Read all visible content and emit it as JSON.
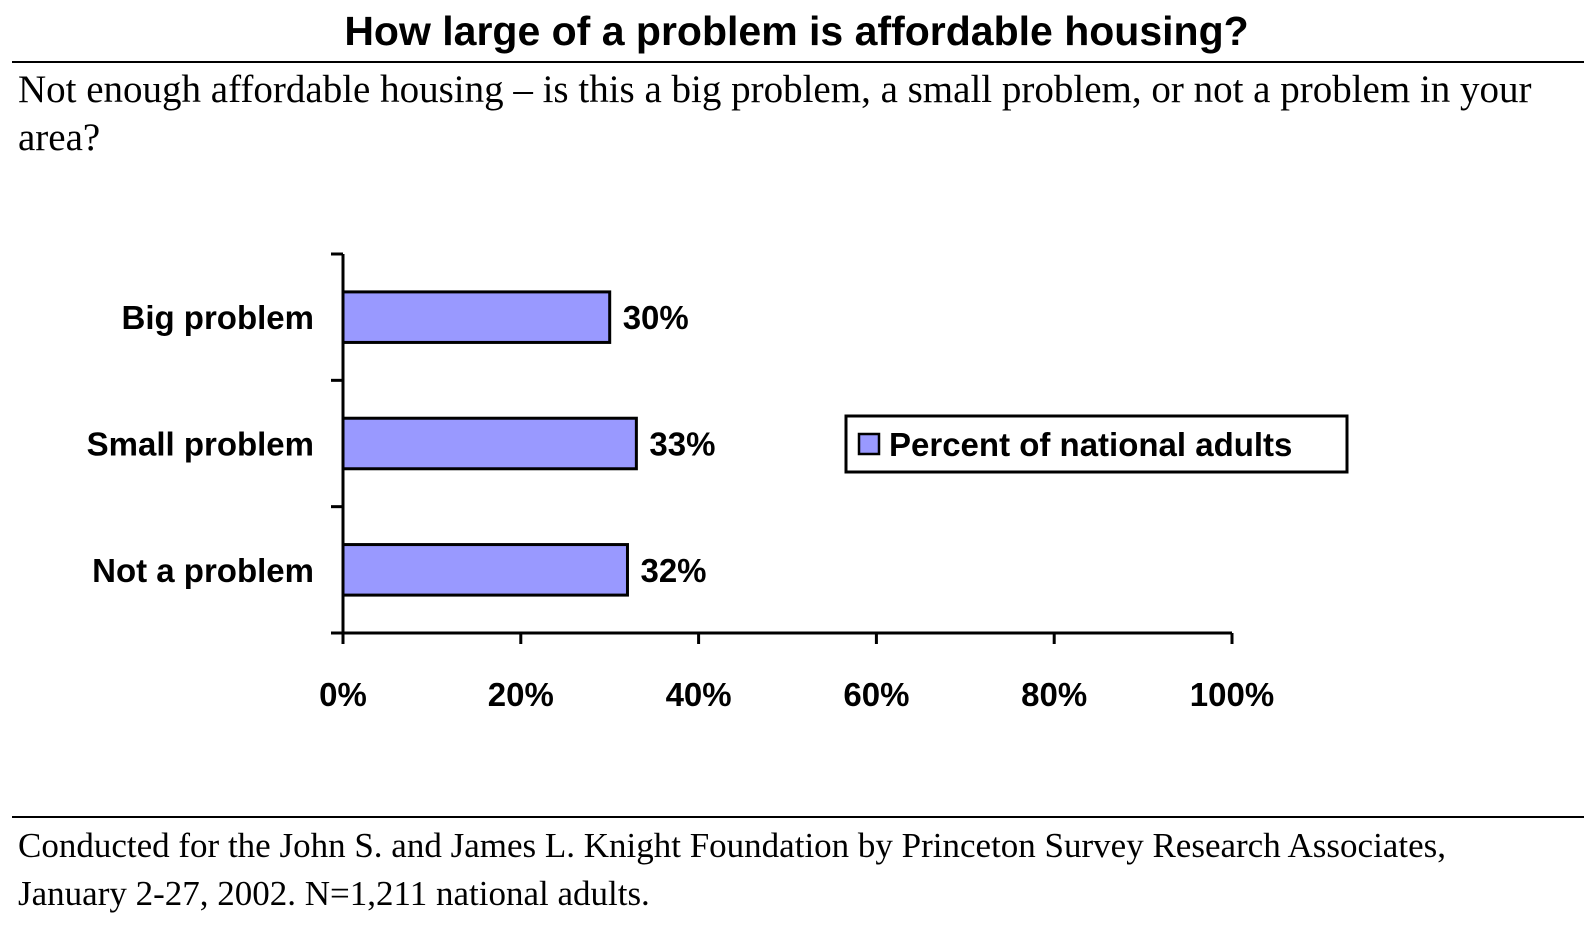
{
  "title": "How large of a problem is affordable housing?",
  "question": "Not enough affordable housing – is this a big problem, a small problem, or not a problem in your area?",
  "footer": "Conducted for the John S. and James L. Knight Foundation by Princeton Survey Research Associates, January 2-27, 2002.  N=1,211 national adults.",
  "chart_data": {
    "type": "bar",
    "orientation": "horizontal",
    "categories": [
      "Big problem",
      "Small problem",
      "Not a problem"
    ],
    "series": [
      {
        "name": "Percent of national adults",
        "values": [
          30,
          33,
          32
        ],
        "color": "#9999ff"
      }
    ],
    "data_labels": [
      "30%",
      "33%",
      "32%"
    ],
    "xlim": [
      0,
      100
    ],
    "x_ticks": [
      0,
      20,
      40,
      60,
      80,
      100
    ],
    "x_tick_labels": [
      "0%",
      "20%",
      "40%",
      "60%",
      "80%",
      "100%"
    ],
    "legend_position": "right",
    "grid": false
  }
}
